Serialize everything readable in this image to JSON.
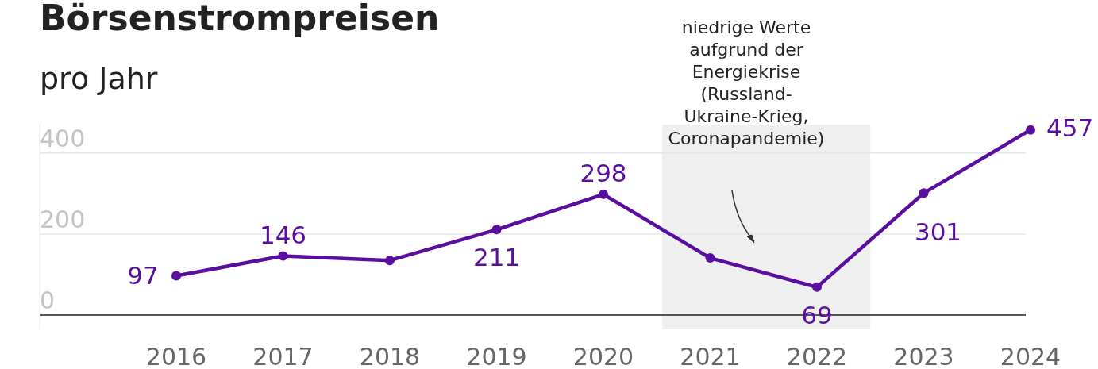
{
  "chart_data": {
    "type": "line",
    "title": "Börsenstrompreisen",
    "subtitle": "pro Jahr",
    "categories": [
      "2016",
      "2017",
      "2018",
      "2019",
      "2020",
      "2021",
      "2022",
      "2023",
      "2024"
    ],
    "series": [
      {
        "color": "#5a0ea0",
        "values": [
          97,
          146,
          135,
          211,
          298,
          141,
          69,
          301,
          457
        ],
        "value_labels": [
          "97",
          "146",
          null,
          "211",
          "298",
          null,
          "69",
          "301",
          "457"
        ]
      }
    ],
    "ylim": [
      -35,
      470
    ],
    "yticks": [
      0,
      200,
      400
    ],
    "grid": "y",
    "marker": "circle",
    "line_style": "solid",
    "bands": [
      {
        "axis": "x",
        "from": "2021",
        "to": "2022",
        "color": "#efefef"
      }
    ],
    "annotations": [
      "niedrige Werte\naufgrund der\nEnergiekrise\n(Russland-\nUkraine-Krieg,\nCoronapandemie)"
    ]
  }
}
